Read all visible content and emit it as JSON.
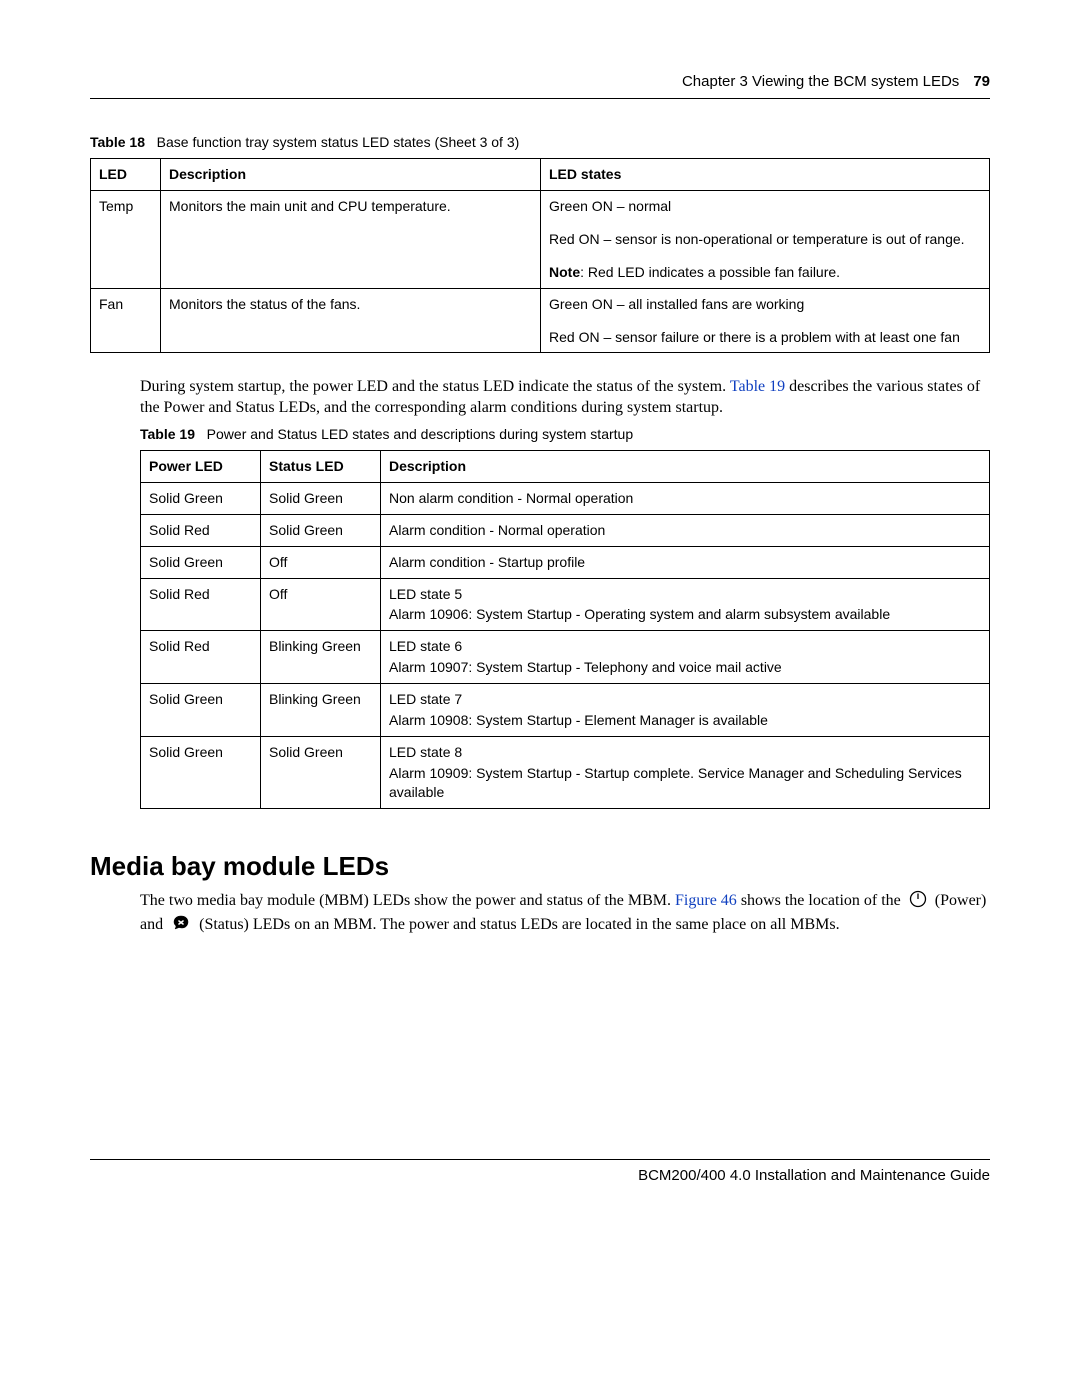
{
  "header": {
    "chapter": "Chapter 3  Viewing the BCM system LEDs",
    "page": "79"
  },
  "table18": {
    "caption_label": "Table 18",
    "caption_text": "Base function tray system status LED states (Sheet 3 of 3)",
    "cols": [
      "LED",
      "Description",
      "LED states"
    ],
    "col_widths": [
      "70px",
      "380px",
      "auto"
    ],
    "rows": [
      {
        "led": "Temp",
        "desc": "Monitors the main unit and CPU temperature.",
        "states": [
          "Green ON – normal",
          "Red ON – sensor is non-operational or temperature is out of range.",
          "<b>Note</b>: Red LED indicates a possible fan failure."
        ]
      },
      {
        "led": "Fan",
        "desc": "Monitors the status of the fans.",
        "states": [
          "Green ON – all installed fans are working",
          "Red ON – sensor failure or there is a problem with at least one fan"
        ]
      }
    ]
  },
  "para1_a": "During system startup, the power LED and the status LED indicate the status of the system. ",
  "para1_link": "Table 19",
  "para1_b": " describes the various states of the Power and Status LEDs, and the corresponding alarm conditions during system startup.",
  "table19": {
    "caption_label": "Table 19",
    "caption_text": "Power and Status LED states and descriptions during system startup",
    "cols": [
      "Power LED",
      "Status LED",
      "Description"
    ],
    "col_widths": [
      "120px",
      "120px",
      "auto"
    ],
    "rows": [
      {
        "p": "Solid Green",
        "s": "Solid Green",
        "d": [
          "Non alarm condition - Normal operation"
        ]
      },
      {
        "p": "Solid Red",
        "s": "Solid Green",
        "d": [
          "Alarm condition - Normal operation"
        ]
      },
      {
        "p": "Solid Green",
        "s": "Off",
        "d": [
          "Alarm condition - Startup profile"
        ]
      },
      {
        "p": "Solid Red",
        "s": "Off",
        "d": [
          "LED state 5",
          "Alarm 10906: System Startup - Operating system and alarm subsystem available"
        ]
      },
      {
        "p": "Solid Red",
        "s": "Blinking Green",
        "d": [
          "LED state 6",
          "Alarm 10907: System Startup - Telephony and voice mail active"
        ]
      },
      {
        "p": "Solid Green",
        "s": "Blinking Green",
        "d": [
          "LED state 7",
          "Alarm 10908: System Startup - Element Manager is available"
        ]
      },
      {
        "p": "Solid Green",
        "s": "Solid Green",
        "d": [
          "LED state 8",
          "Alarm 10909: System Startup - Startup complete. Service Manager and Scheduling Services available"
        ]
      }
    ]
  },
  "section_heading": "Media bay module LEDs",
  "para2_a": "The two media bay module (MBM) LEDs show the power and status of the MBM. ",
  "para2_link": "Figure 46",
  "para2_b": " shows the location of the ",
  "para2_c": " (Power) and ",
  "para2_d": " (Status) LEDs on an MBM. The power and status LEDs are located in the same place on all MBMs.",
  "footer": "BCM200/400 4.0 Installation and Maintenance Guide"
}
